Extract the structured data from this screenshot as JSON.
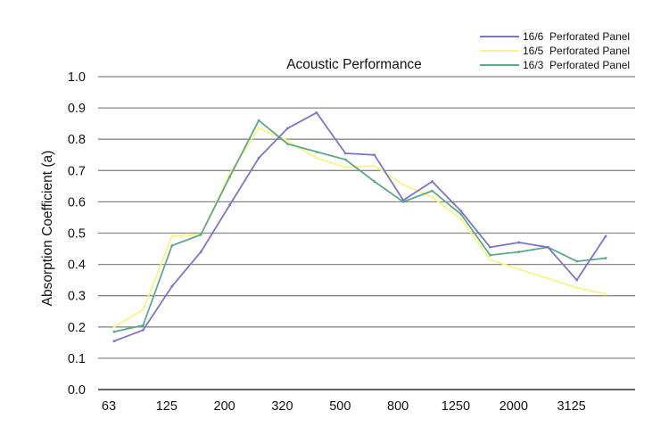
{
  "chart_data": {
    "type": "line",
    "title": "Acoustic Performance",
    "xlabel": "",
    "ylabel": "Absorption Coefficient (a)",
    "ylim": [
      0,
      1.0
    ],
    "yticks": [
      "0.0",
      "0.1",
      "0.2",
      "0.3",
      "0.4",
      "0.5",
      "0.6",
      "0.7",
      "0.8",
      "0.9",
      "1.0"
    ],
    "x_tick_labels": [
      "63",
      "125",
      "200",
      "320",
      "500",
      "800",
      "1250",
      "2000",
      "3125"
    ],
    "grid": "horizontal",
    "legend_position": "top-right",
    "series": [
      {
        "name": "16/6  Perforated Panel",
        "color": "#7b76c8",
        "values": [
          0.155,
          0.19,
          0.33,
          0.44,
          0.59,
          0.74,
          0.835,
          0.885,
          0.755,
          0.75,
          0.605,
          0.665,
          0.57,
          0.455,
          0.47,
          0.455,
          0.35,
          0.49
        ]
      },
      {
        "name": "16/5  Perforated Panel",
        "color": "#f5f58a",
        "values": [
          0.2,
          0.255,
          0.49,
          0.495,
          0.69,
          0.835,
          0.795,
          0.74,
          0.71,
          0.715,
          0.655,
          0.615,
          0.545,
          0.415,
          0.385,
          0.355,
          0.325,
          0.305
        ]
      },
      {
        "name": "16/3  Perforated Panel",
        "color": "#5fa88a",
        "values": [
          0.185,
          0.205,
          0.46,
          0.495,
          0.68,
          0.86,
          0.785,
          0.76,
          0.735,
          0.665,
          0.6,
          0.635,
          0.56,
          0.43,
          0.44,
          0.455,
          0.41,
          0.42
        ]
      }
    ]
  }
}
